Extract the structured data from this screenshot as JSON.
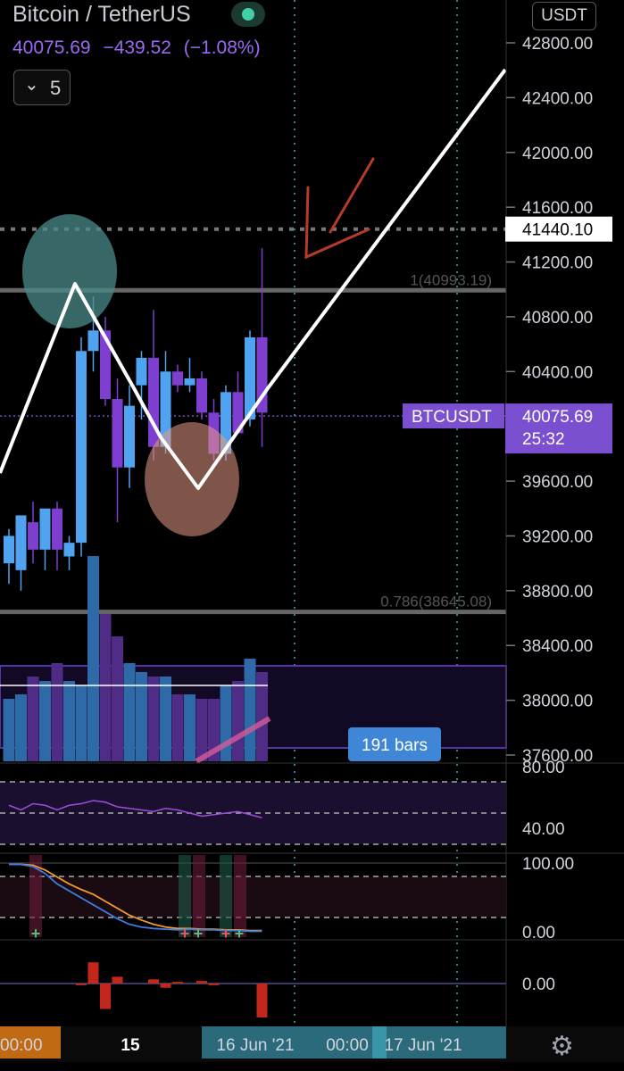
{
  "header": {
    "title": "Bitcoin / TetherUS",
    "last": "40075.69",
    "change": "−439.52",
    "change_pct": "(−1.08%)",
    "interval": "5",
    "currency": "USDT"
  },
  "colors": {
    "up": "#4fa3f0",
    "down": "#7e3fd0",
    "background": "#000000",
    "price_tag": "#7a4fd0",
    "bars_badge": "#3f87d6",
    "drawing": "#ffffff",
    "arrow": "#b83a28",
    "circle_top": "#4a8a8a",
    "circle_bottom": "#e89a86"
  },
  "icons": [
    "chevron-down-icon",
    "market-status-dot-icon",
    "gear-icon"
  ],
  "chart_data": {
    "type": "candlestick",
    "symbol_label": "BTCUSDT",
    "y_ticks": [
      "42800.00",
      "42400.00",
      "42000.00",
      "41600.00",
      "41200.00",
      "40800.00",
      "40400.00",
      "39600.00",
      "39200.00",
      "38800.00",
      "38400.00",
      "38000.00",
      "37600.00"
    ],
    "ylim": [
      37600,
      42800
    ],
    "price_line": {
      "label": "BTCUSDT",
      "value": 40075.69,
      "countdown": "25:32"
    },
    "dotted_level": {
      "value": 41440.1,
      "label": "41440.10"
    },
    "fib_levels": [
      {
        "label": "1(40993.19)",
        "value": 40993.19
      },
      {
        "label": "0.786(38645.08)",
        "value": 38645.08
      }
    ],
    "candles": [
      {
        "o": 39000,
        "h": 39250,
        "l": 38850,
        "c": 39200
      },
      {
        "o": 38950,
        "h": 39350,
        "l": 38800,
        "c": 39350
      },
      {
        "o": 39300,
        "h": 39450,
        "l": 39000,
        "c": 39100
      },
      {
        "o": 39100,
        "h": 39400,
        "l": 38950,
        "c": 39400
      },
      {
        "o": 39400,
        "h": 39450,
        "l": 38950,
        "c": 39100
      },
      {
        "o": 39050,
        "h": 39200,
        "l": 38950,
        "c": 39150
      },
      {
        "o": 39150,
        "h": 40650,
        "l": 39050,
        "c": 40550
      },
      {
        "o": 40550,
        "h": 40950,
        "l": 40400,
        "c": 40700
      },
      {
        "o": 40700,
        "h": 40800,
        "l": 40150,
        "c": 40200
      },
      {
        "o": 40200,
        "h": 40350,
        "l": 39300,
        "c": 39700
      },
      {
        "o": 39700,
        "h": 40300,
        "l": 39550,
        "c": 40150
      },
      {
        "o": 40300,
        "h": 40550,
        "l": 40050,
        "c": 40500
      },
      {
        "o": 40500,
        "h": 40850,
        "l": 39750,
        "c": 39850
      },
      {
        "o": 39850,
        "h": 40550,
        "l": 39800,
        "c": 40400
      },
      {
        "o": 40400,
        "h": 40450,
        "l": 40250,
        "c": 40300
      },
      {
        "o": 40300,
        "h": 40500,
        "l": 40250,
        "c": 40350
      },
      {
        "o": 40350,
        "h": 40400,
        "l": 40050,
        "c": 40100
      },
      {
        "o": 40100,
        "h": 40200,
        "l": 39750,
        "c": 39800
      },
      {
        "o": 39800,
        "h": 40300,
        "l": 39750,
        "c": 40250
      },
      {
        "o": 40250,
        "h": 40400,
        "l": 39950,
        "c": 39950
      },
      {
        "o": 40050,
        "h": 40700,
        "l": 40000,
        "c": 40650
      },
      {
        "o": 40650,
        "h": 41300,
        "l": 39850,
        "c": 40100
      }
    ],
    "volume": [
      70,
      75,
      95,
      90,
      110,
      90,
      85,
      230,
      165,
      140,
      110,
      100,
      95,
      95,
      75,
      75,
      70,
      70,
      85,
      90,
      115,
      100
    ],
    "volume_labels": {
      "bars_badge": "191 bars"
    },
    "rsi_ticks": [
      "80.00",
      "40.00"
    ],
    "rsi": [
      65,
      62,
      66,
      65,
      62,
      65,
      66,
      68,
      67,
      64,
      63,
      62,
      61,
      63,
      62,
      60,
      58,
      59,
      60,
      61,
      59,
      57
    ],
    "stoch_ticks": [
      "100.00",
      "0.00"
    ],
    "stoch_k": [
      98,
      98,
      95,
      85,
      70,
      60,
      50,
      40,
      30,
      20,
      12,
      8,
      6,
      5,
      4,
      5,
      4,
      4,
      3,
      3,
      2,
      2
    ],
    "stoch_d": [
      98,
      98,
      97,
      90,
      80,
      70,
      62,
      55,
      45,
      35,
      25,
      18,
      12,
      8,
      6,
      6,
      5,
      5,
      4,
      4,
      3,
      3
    ],
    "macd_ticks": [
      "0.00"
    ],
    "macd_hist": [
      0,
      0,
      0,
      0,
      0,
      0,
      -2,
      25,
      -30,
      8,
      0,
      0,
      5,
      -5,
      2,
      0,
      3,
      -2,
      0,
      0,
      0,
      -40
    ],
    "x_labels": [
      "00:00",
      "15",
      "16 Jun '21",
      "00:00",
      "17 Jun '21"
    ]
  }
}
